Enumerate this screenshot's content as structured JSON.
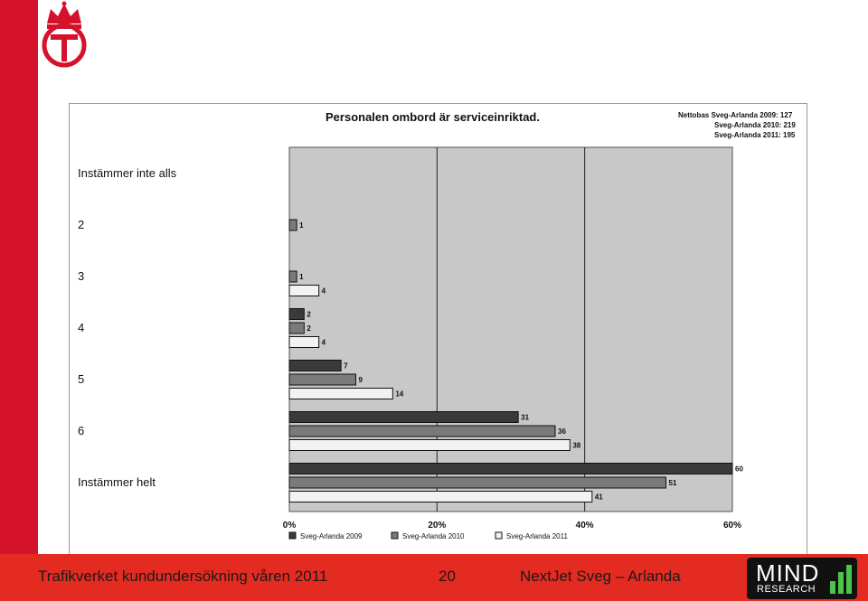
{
  "footer": {
    "left_text": "Trafikverket kundundersökning våren 2011",
    "page_number": "20",
    "right_text": "NextJet  Sveg – Arlanda",
    "logo_word": "MIND",
    "logo_sub": "RESEARCH"
  },
  "netto": {
    "lines": [
      "Nettobas  Sveg-Arlanda 2009: 127",
      "Sveg-Arlanda 2010: 219",
      "Sveg-Arlanda 2011: 195"
    ]
  },
  "colors": {
    "brand_red": "#d4122b",
    "footer_red": "#e32b21",
    "plot_bg": "#c8c8c8",
    "series_2009": "#3a3a3a",
    "series_2010": "#7a7a7a",
    "series_2011": "#f2f2f2"
  },
  "chart_data": {
    "type": "bar",
    "orientation": "horizontal",
    "title": "Personalen ombord är serviceinriktad.",
    "categories": [
      "Instämmer inte alls",
      "2",
      "3",
      "4",
      "5",
      "6",
      "Instämmer helt"
    ],
    "series": [
      {
        "name": "Sveg-Arlanda 2009",
        "values": [
          null,
          null,
          null,
          2,
          7,
          31,
          60
        ]
      },
      {
        "name": "Sveg-Arlanda 2010",
        "values": [
          null,
          1,
          1,
          2,
          9,
          36,
          51
        ]
      },
      {
        "name": "Sveg-Arlanda 2011",
        "values": [
          null,
          null,
          4,
          4,
          14,
          38,
          41
        ]
      }
    ],
    "xlim": [
      0,
      60
    ],
    "xticks": [
      "0%",
      "20%",
      "40%",
      "60%"
    ],
    "grid": true,
    "legend_position": "bottom"
  }
}
